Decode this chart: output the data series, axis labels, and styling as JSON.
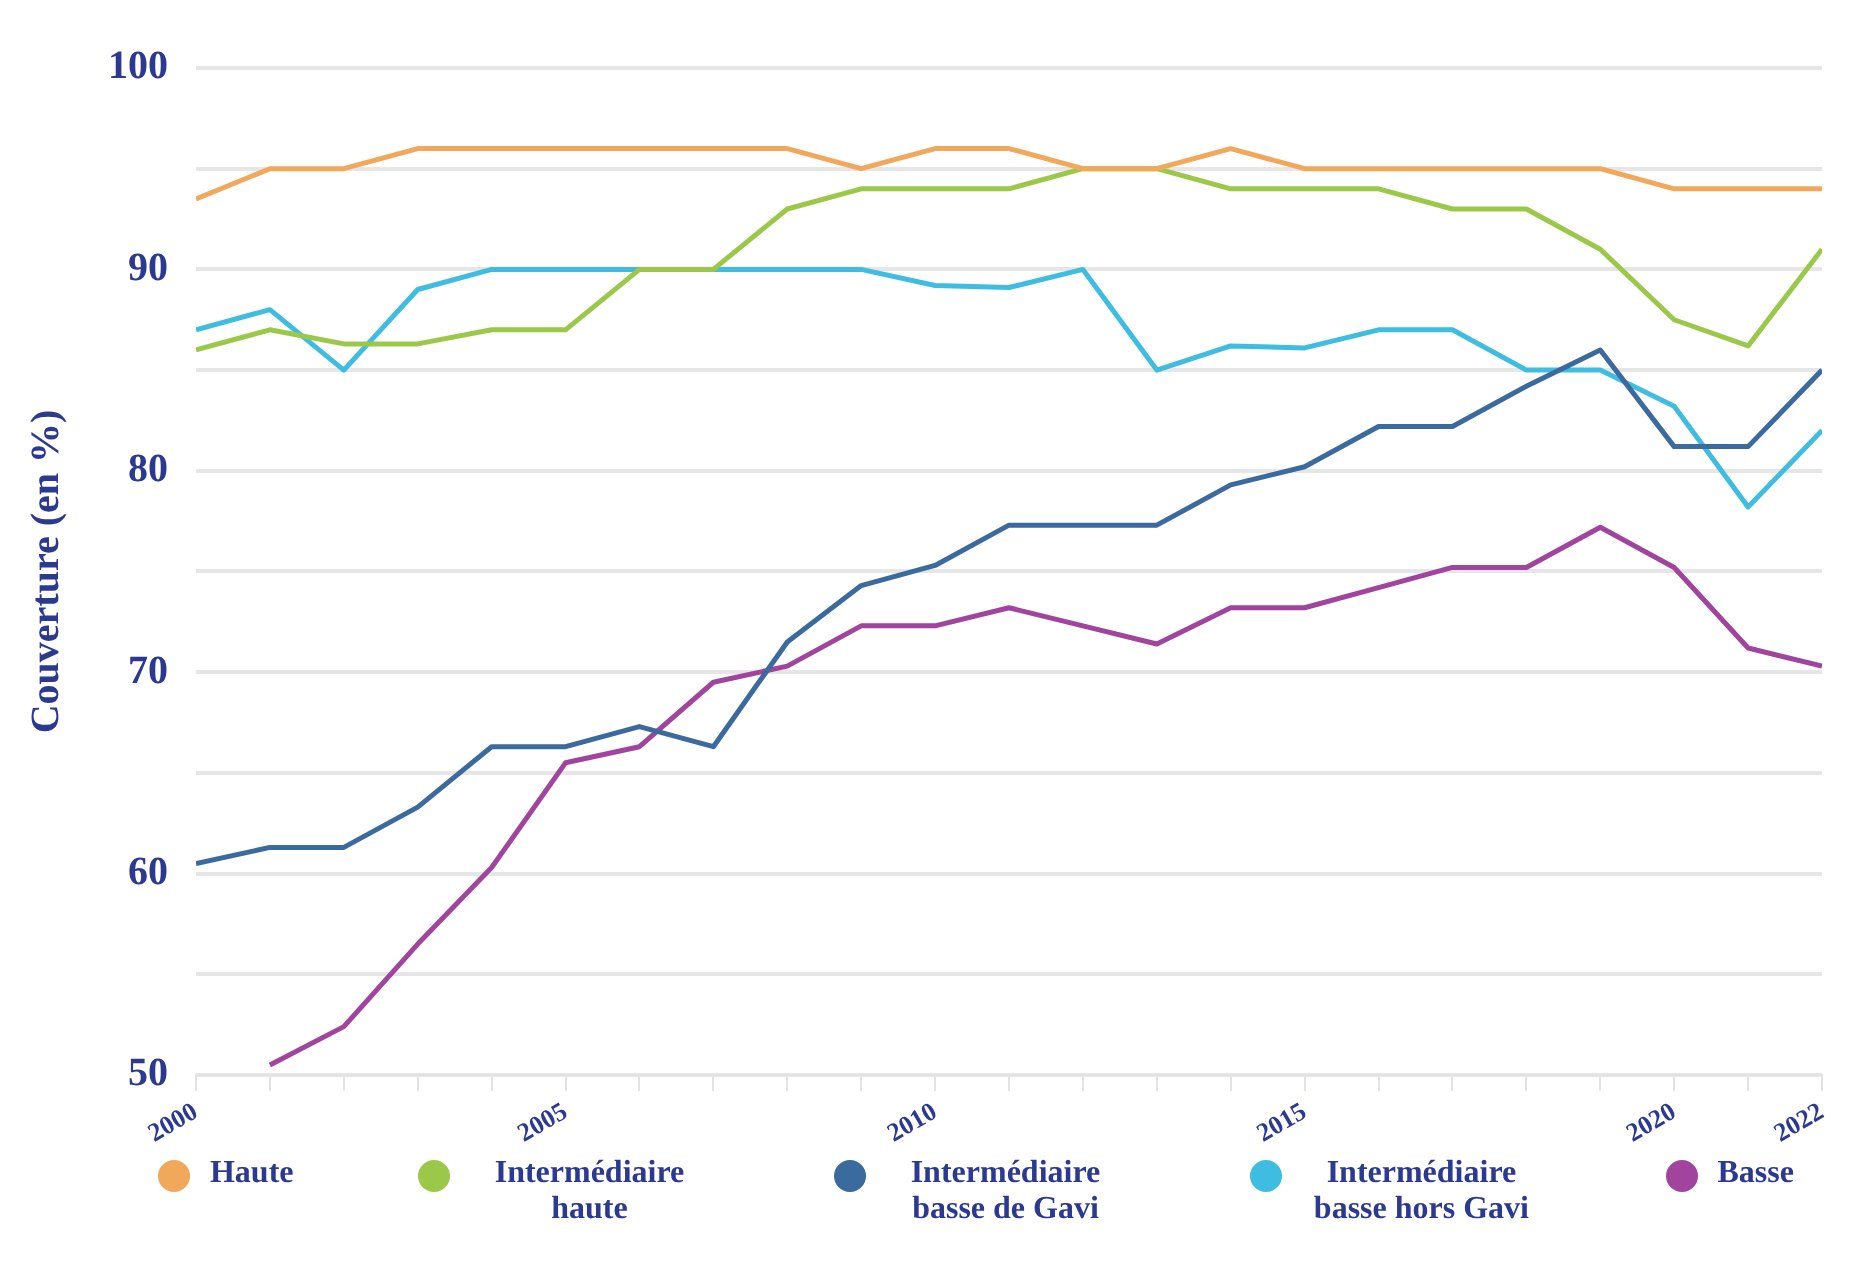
{
  "chart_data": {
    "type": "line",
    "ylabel": "Couverture (en %)",
    "x": [
      2000,
      2001,
      2002,
      2003,
      2004,
      2005,
      2006,
      2007,
      2008,
      2009,
      2010,
      2011,
      2012,
      2013,
      2014,
      2015,
      2016,
      2017,
      2018,
      2019,
      2020,
      2021,
      2022
    ],
    "xlim": [
      2000,
      2022
    ],
    "xticks": [
      2000,
      {
        "value": 2001,
        "label": null
      },
      {
        "value": 2002,
        "label": null
      },
      {
        "value": 2003,
        "label": null
      },
      {
        "value": 2004,
        "label": null
      },
      2005,
      {
        "value": 2006,
        "label": null
      },
      {
        "value": 2007,
        "label": null
      },
      {
        "value": 2008,
        "label": null
      },
      {
        "value": 2009,
        "label": null
      },
      2010,
      {
        "value": 2011,
        "label": null
      },
      {
        "value": 2012,
        "label": null
      },
      {
        "value": 2013,
        "label": null
      },
      {
        "value": 2014,
        "label": null
      },
      2015,
      {
        "value": 2016,
        "label": null
      },
      {
        "value": 2017,
        "label": null
      },
      {
        "value": 2018,
        "label": null
      },
      {
        "value": 2019,
        "label": null
      },
      2020,
      {
        "value": 2021,
        "label": null
      },
      2022
    ],
    "ylim": [
      50,
      100
    ],
    "yticks": [
      50,
      {
        "value": 55,
        "label": null
      },
      60,
      {
        "value": 65,
        "label": null
      },
      70,
      {
        "value": 75,
        "label": null
      },
      80,
      {
        "value": 85,
        "label": null
      },
      90,
      {
        "value": 95,
        "label": null
      },
      100
    ],
    "grid": "y",
    "legend": "bottom",
    "marker": "none",
    "line_style": "solid",
    "series": [
      {
        "name": "Haute",
        "color": "#f2a85a",
        "values": [
          93.5,
          95,
          95,
          96,
          96,
          96,
          96,
          96,
          96,
          95,
          96,
          96,
          95,
          95,
          96,
          95,
          95,
          95,
          95,
          95,
          94,
          94,
          94
        ]
      },
      {
        "name": "Intermédiaire haute",
        "color": "#9cc84a",
        "values": [
          86,
          87,
          86.3,
          86.3,
          87,
          87,
          90,
          90,
          93,
          94,
          94,
          94,
          95,
          95,
          94,
          94,
          94,
          93,
          93,
          91,
          87.5,
          86.2,
          91
        ]
      },
      {
        "name": "Intermédiaire basse de Gavi",
        "color": "#3b6a9e",
        "values": [
          60.5,
          61.3,
          61.3,
          63.3,
          66.3,
          66.3,
          67.3,
          66.3,
          71.5,
          74.3,
          75.3,
          77.3,
          77.3,
          77.3,
          79.3,
          80.2,
          82.2,
          82.2,
          84.2,
          86,
          81.2,
          81.2,
          85
        ]
      },
      {
        "name": "Intermédiaire basse hors Gavi",
        "color": "#3fbde0",
        "values": [
          87,
          88,
          85,
          89,
          90,
          90,
          90,
          90,
          90,
          90,
          89.2,
          89.1,
          90,
          85,
          86.2,
          86.1,
          87,
          87,
          85,
          85,
          83.2,
          78.2,
          82
        ]
      },
      {
        "name": "Basse",
        "color": "#a0449e",
        "values": [
          null,
          50.5,
          52.4,
          56.5,
          60.3,
          65.5,
          66.3,
          69.5,
          70.3,
          72.3,
          72.3,
          73.2,
          72.3,
          71.4,
          73.2,
          73.2,
          74.2,
          75.2,
          75.2,
          77.2,
          75.2,
          71.2,
          70.3
        ]
      }
    ]
  }
}
